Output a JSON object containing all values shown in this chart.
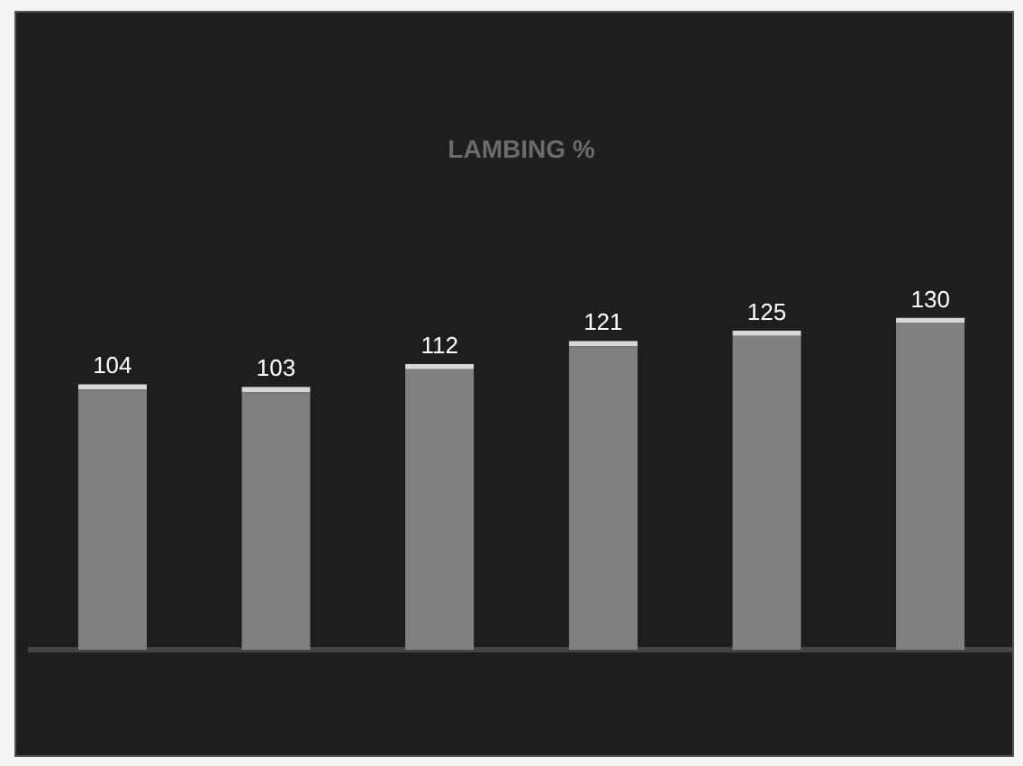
{
  "chart_data": {
    "type": "bar",
    "title": "LAMBING %",
    "categories": [
      null,
      null,
      null,
      null,
      null,
      null
    ],
    "values": [
      104,
      103,
      112,
      121,
      125,
      130
    ],
    "color": "#808080",
    "data_labels": true,
    "grid": false,
    "legend": false
  }
}
